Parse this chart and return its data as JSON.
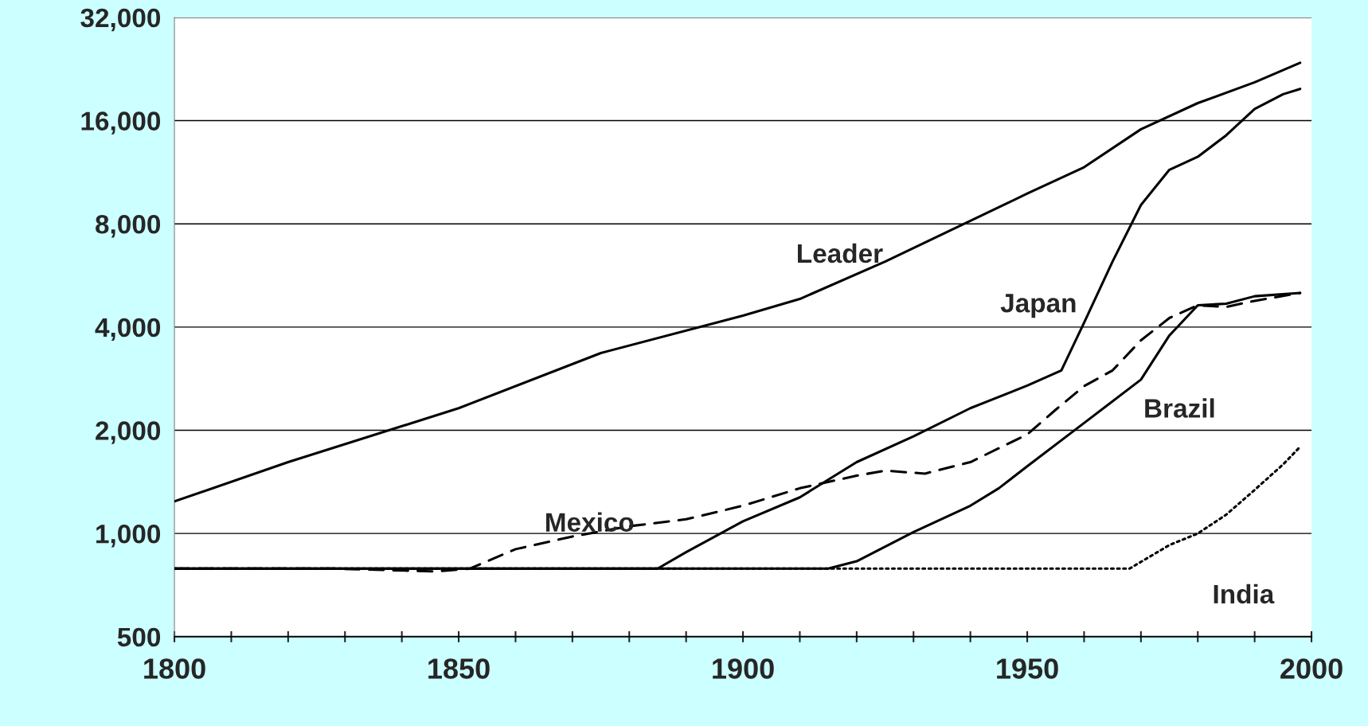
{
  "chart_data": {
    "type": "line",
    "log": "y",
    "grid": "y",
    "marker": "none",
    "xlim": [
      1800,
      2000
    ],
    "ylim": [
      500,
      32000
    ],
    "xticks": [
      1800,
      {
        "value": 1810,
        "label": null
      },
      {
        "value": 1820,
        "label": null
      },
      {
        "value": 1830,
        "label": null
      },
      {
        "value": 1840,
        "label": null
      },
      1850,
      {
        "value": 1860,
        "label": null
      },
      {
        "value": 1870,
        "label": null
      },
      {
        "value": 1880,
        "label": null
      },
      {
        "value": 1890,
        "label": null
      },
      1900,
      {
        "value": 1910,
        "label": null
      },
      {
        "value": 1920,
        "label": null
      },
      {
        "value": 1930,
        "label": null
      },
      {
        "value": 1940,
        "label": null
      },
      1950,
      {
        "value": 1960,
        "label": null
      },
      {
        "value": 1970,
        "label": null
      },
      {
        "value": 1980,
        "label": null
      },
      {
        "value": 1990,
        "label": null
      },
      2000
    ],
    "yticks": [
      {
        "value": 500,
        "label": "500"
      },
      {
        "value": 1000,
        "label": "1,000"
      },
      {
        "value": 2000,
        "label": "2,000"
      },
      {
        "value": 4000,
        "label": "4,000"
      },
      {
        "value": 8000,
        "label": "8,000"
      },
      {
        "value": 16000,
        "label": "16,000"
      },
      {
        "value": 32000,
        "label": "32,000"
      }
    ],
    "series": [
      {
        "name": "Leader",
        "color": "#000000",
        "line_style": "solid",
        "x": [
          1800,
          1820,
          1850,
          1875,
          1900,
          1910,
          1925,
          1950,
          1960,
          1970,
          1980,
          1990,
          1998
        ],
        "values": [
          1240,
          1615,
          2320,
          3360,
          4320,
          4830,
          6210,
          9800,
          11700,
          15100,
          18000,
          20700,
          23600
        ]
      },
      {
        "name": "Japan",
        "color": "#000000",
        "line_style": "solid",
        "x": [
          1800,
          1885,
          1890,
          1900,
          1910,
          1920,
          1930,
          1940,
          1950,
          1956,
          1960,
          1965,
          1970,
          1975,
          1980,
          1985,
          1990,
          1995,
          1998
        ],
        "values": [
          790,
          790,
          882,
          1085,
          1275,
          1615,
          1920,
          2320,
          2700,
          2990,
          4120,
          6210,
          9080,
          11500,
          12550,
          14500,
          17300,
          19100,
          19800
        ]
      },
      {
        "name": "Mexico",
        "color": "#000000",
        "line_style": "dashed",
        "x": [
          1800,
          1828,
          1846,
          1852,
          1860,
          1870,
          1880,
          1890,
          1900,
          1910,
          1920,
          1925,
          1932,
          1940,
          1950,
          1955,
          1960,
          1965,
          1970,
          1975,
          1980,
          1985,
          1990,
          1998
        ],
        "values": [
          790,
          790,
          775,
          790,
          900,
          980,
          1050,
          1100,
          1205,
          1355,
          1475,
          1525,
          1495,
          1615,
          1945,
          2295,
          2690,
          2990,
          3660,
          4250,
          4630,
          4580,
          4770,
          5030
        ]
      },
      {
        "name": "Brazil",
        "color": "#000000",
        "line_style": "solid",
        "x": [
          1800,
          1915,
          1920,
          1930,
          1940,
          1945,
          1950,
          1960,
          1970,
          1975,
          1980,
          1985,
          1990,
          1998
        ],
        "values": [
          790,
          790,
          830,
          1010,
          1205,
          1355,
          1570,
          2100,
          2810,
          3780,
          4630,
          4680,
          4920,
          5030
        ]
      },
      {
        "name": "India",
        "color": "#000000",
        "line_style": "dotted",
        "x": [
          1800,
          1968,
          1975,
          1980,
          1985,
          1990,
          1995,
          1998
        ],
        "values": [
          790,
          790,
          925,
          1000,
          1135,
          1340,
          1590,
          1790
        ]
      }
    ]
  }
}
